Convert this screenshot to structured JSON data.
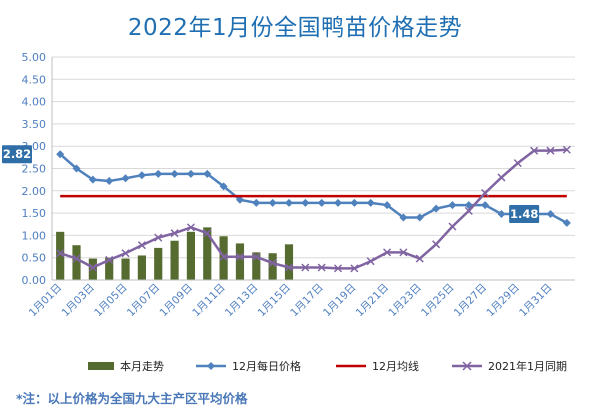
{
  "chart_data": {
    "type": "line",
    "title": "2022年1月份全国鸭苗价格走势",
    "ylim": [
      0,
      5
    ],
    "yticks": [
      "0.00",
      "0.50",
      "1.00",
      "1.50",
      "2.00",
      "2.50",
      "3.00",
      "3.50",
      "4.00",
      "4.50",
      "5.00"
    ],
    "xticks": [
      "1月01日",
      "1月03日",
      "1月05日",
      "1月07日",
      "1月09日",
      "1月11日",
      "1月13日",
      "1月15日",
      "1月17日",
      "1月19日",
      "1月21日",
      "1月23日",
      "1月25日",
      "1月27日",
      "1月29日",
      "1月31日"
    ],
    "grid": true,
    "legend_position": "bottom",
    "series": [
      {
        "name": "本月走势",
        "kind": "bar",
        "color": "#556b2f",
        "values": [
          1.08,
          0.78,
          0.48,
          0.5,
          0.48,
          0.55,
          0.72,
          0.88,
          1.08,
          1.18,
          0.98,
          0.82,
          0.62,
          0.6,
          0.8
        ]
      },
      {
        "name": "12月每日价格",
        "kind": "line",
        "marker": "diamond",
        "color": "#4f81bd",
        "values": [
          2.82,
          2.5,
          2.25,
          2.22,
          2.28,
          2.35,
          2.38,
          2.38,
          2.38,
          2.38,
          2.1,
          1.8,
          1.73,
          1.73,
          1.73,
          1.73,
          1.73,
          1.73,
          1.73,
          1.73,
          1.68,
          1.4,
          1.4,
          1.6,
          1.68,
          1.68,
          1.68,
          1.48,
          1.48,
          1.48,
          1.48,
          1.28
        ]
      },
      {
        "name": "12月均线",
        "kind": "hline",
        "color": "#c00000",
        "value": 1.88
      },
      {
        "name": "2021年1月同期",
        "kind": "line",
        "marker": "x",
        "color": "#8064a2",
        "values": [
          0.6,
          0.48,
          0.28,
          0.45,
          0.6,
          0.78,
          0.95,
          1.05,
          1.18,
          1.05,
          0.52,
          0.52,
          0.52,
          0.38,
          0.28,
          0.28,
          0.28,
          0.26,
          0.26,
          0.42,
          0.62,
          0.62,
          0.48,
          0.8,
          1.2,
          1.55,
          1.95,
          2.3,
          2.62,
          2.9,
          2.9,
          2.92
        ]
      }
    ],
    "data_labels": [
      {
        "series": "12月每日价格",
        "index": 0,
        "text": "2.82"
      },
      {
        "series": "12月每日价格",
        "index": 29,
        "text": "1.48"
      }
    ]
  },
  "footnote": "*注：以上价格为全国九大主产区平均价格"
}
